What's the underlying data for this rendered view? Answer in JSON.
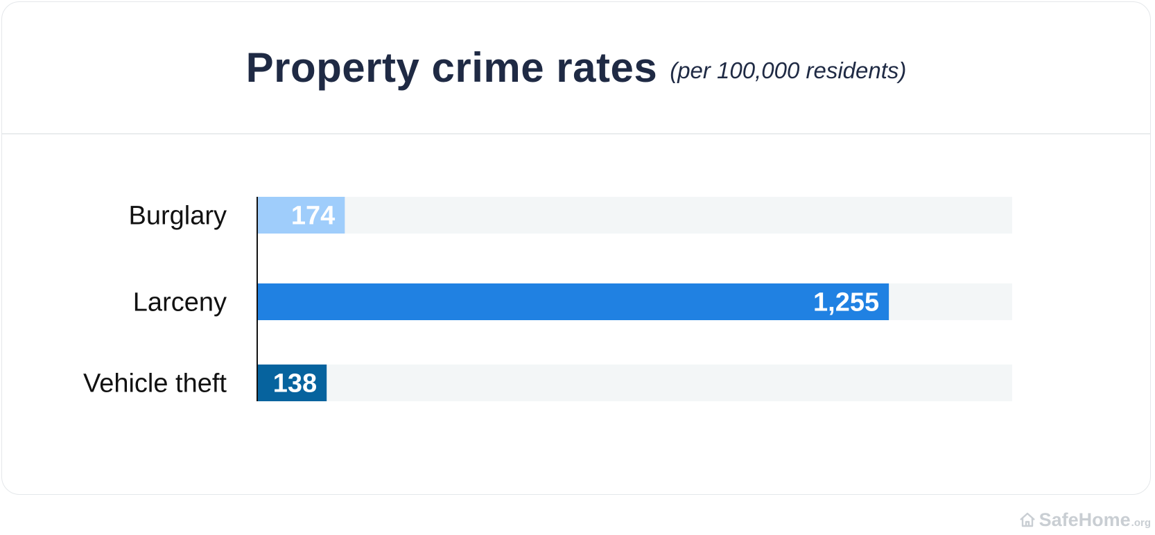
{
  "chart_data": {
    "type": "bar",
    "orientation": "horizontal",
    "title": "Property crime rates",
    "subtitle": "(per 100,000 residents)",
    "categories": [
      "Burglary",
      "Larceny",
      "Vehicle theft"
    ],
    "values": [
      174,
      1255,
      138
    ],
    "value_labels": [
      "174",
      "1,255",
      "138"
    ],
    "xlim": [
      0,
      1500
    ],
    "colors": [
      "#9fcdfb",
      "#2081e2",
      "#06639e"
    ],
    "track_color": "#f3f6f7",
    "axis_color": "#111111",
    "grid": false,
    "legend": "none"
  },
  "brand": {
    "name": "SafeHome",
    "tld": ".org",
    "icon": "house-icon",
    "color": "#c9ced3"
  }
}
